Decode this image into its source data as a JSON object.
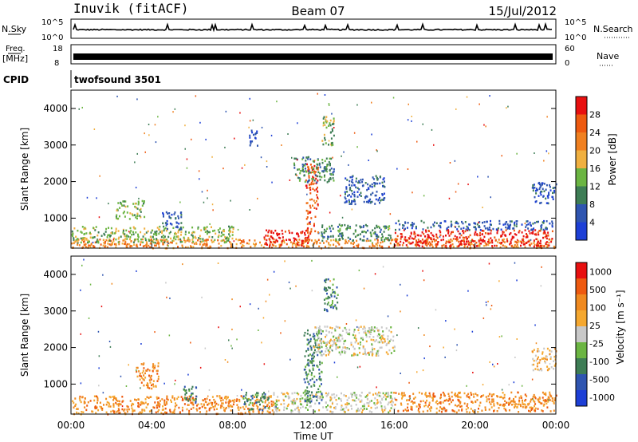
{
  "header": {
    "station": "Inuvik (fitACF)",
    "beam": "Beam 07",
    "date": "15/Jul/2012"
  },
  "strips": {
    "nsky_label": "N.Sky",
    "nsky_ticks": [
      "10^5",
      "10^0"
    ],
    "nsearch_label": "N.Search",
    "nsearch_ticks": [
      "10^5",
      "10^0"
    ],
    "freq_label": "Freq.",
    "freq_unit": "[MHz]",
    "freq_ticks": [
      "18",
      "8"
    ],
    "nave_label": "Nave",
    "nave_ticks": [
      "60",
      "0"
    ],
    "cpid_label": "CPID",
    "cpid_value": "twofsound 3501"
  },
  "colors": {
    "power": [
      "#1d3fd6",
      "#2f55b0",
      "#3e7d55",
      "#6bb542",
      "#f0b040",
      "#f08020",
      "#ee5a10",
      "#e81010"
    ],
    "velocity": [
      "#e81010",
      "#ee5a10",
      "#f08a20",
      "#f5a830",
      "#c8c8c8",
      "#6bb542",
      "#3e7d55",
      "#2f55b0",
      "#1d3fd6"
    ]
  },
  "chart_data": [
    {
      "type": "heatmap",
      "name": "power",
      "ylabel": "Slant Range [km]",
      "yticks": [
        "1000",
        "2000",
        "3000",
        "4000"
      ],
      "ylim": [
        180,
        4500
      ],
      "xlim": [
        0,
        24
      ],
      "colorbar_label": "Power [dB]",
      "colorbar_ticks": [
        "4",
        "8",
        "12",
        "16",
        "20",
        "24",
        "28"
      ],
      "blobs": [
        {
          "t0": 0.0,
          "t1": 24.0,
          "r0": 200,
          "r1": 450,
          "level": 5
        },
        {
          "t0": 0.0,
          "t1": 8.0,
          "r0": 350,
          "r1": 800,
          "level": 3
        },
        {
          "t0": 9.5,
          "t1": 11.8,
          "r0": 250,
          "r1": 700,
          "level": 7
        },
        {
          "t0": 12.2,
          "t1": 15.8,
          "r0": 400,
          "r1": 850,
          "level": 2
        },
        {
          "t0": 16.0,
          "t1": 23.8,
          "r0": 250,
          "r1": 700,
          "level": 7
        },
        {
          "t0": 16.0,
          "t1": 23.8,
          "r0": 700,
          "r1": 950,
          "level": 1
        },
        {
          "t0": 2.2,
          "t1": 3.6,
          "r0": 1000,
          "r1": 1500,
          "level": 3
        },
        {
          "t0": 4.5,
          "t1": 5.5,
          "r0": 700,
          "r1": 1200,
          "level": 1
        },
        {
          "t0": 11.6,
          "t1": 12.2,
          "r0": 600,
          "r1": 2500,
          "level": 6
        },
        {
          "t0": 11.0,
          "t1": 13.0,
          "r0": 2000,
          "r1": 2700,
          "level": 2
        },
        {
          "t0": 12.4,
          "t1": 13.0,
          "r0": 3000,
          "r1": 3800,
          "level": 3
        },
        {
          "t0": 13.5,
          "t1": 15.5,
          "r0": 1400,
          "r1": 2200,
          "level": 1
        },
        {
          "t0": 8.8,
          "t1": 9.2,
          "r0": 3000,
          "r1": 3500,
          "level": 1
        },
        {
          "t0": 22.8,
          "t1": 24.0,
          "r0": 1400,
          "r1": 2000,
          "level": 1
        }
      ]
    },
    {
      "type": "heatmap",
      "name": "velocity",
      "ylabel": "Slant Range [km]",
      "yticks": [
        "1000",
        "2000",
        "3000",
        "4000"
      ],
      "ylim": [
        180,
        4500
      ],
      "xlim": [
        0,
        24
      ],
      "xlabel": "Time UT",
      "xticks": [
        "00:00",
        "04:00",
        "08:00",
        "12:00",
        "16:00",
        "20:00",
        "00:00"
      ],
      "colorbar_label": "Velocity [m s⁻¹]",
      "colorbar_ticks": [
        "1000",
        "500",
        "100",
        "25",
        "-25",
        "-100",
        "-500",
        "-1000"
      ],
      "blobs": [
        {
          "t0": 0.0,
          "t1": 10.0,
          "r0": 200,
          "r1": 700,
          "level": 2
        },
        {
          "t0": 10.0,
          "t1": 16.0,
          "r0": 250,
          "r1": 800,
          "level": 4
        },
        {
          "t0": 16.0,
          "t1": 24.0,
          "r0": 250,
          "r1": 800,
          "level": 2
        },
        {
          "t0": 3.2,
          "t1": 4.3,
          "r0": 900,
          "r1": 1600,
          "level": 2
        },
        {
          "t0": 5.5,
          "t1": 6.2,
          "r0": 500,
          "r1": 1000,
          "level": 6
        },
        {
          "t0": 8.5,
          "t1": 9.8,
          "r0": 300,
          "r1": 800,
          "level": 6
        },
        {
          "t0": 11.5,
          "t1": 12.4,
          "r0": 500,
          "r1": 2500,
          "level": 6
        },
        {
          "t0": 12.5,
          "t1": 13.2,
          "r0": 3000,
          "r1": 3900,
          "level": 6
        },
        {
          "t0": 12.0,
          "t1": 16.0,
          "r0": 1800,
          "r1": 2600,
          "level": 4
        },
        {
          "t0": 22.8,
          "t1": 24.0,
          "r0": 1400,
          "r1": 2000,
          "level": 3
        }
      ]
    }
  ]
}
